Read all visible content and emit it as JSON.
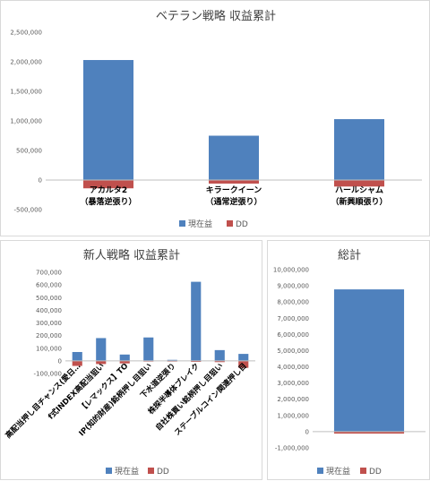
{
  "colors": {
    "profit": "#4f81bd",
    "dd": "#c0504d",
    "grid": "#d9d9d9",
    "axis": "#bfbfbf"
  },
  "chart_data": [
    {
      "type": "bar",
      "title": "ベテラン戦略 収益累計",
      "categories": [
        [
          "アカルタ2",
          "（暴落逆張り）"
        ],
        [
          "キラークイーン",
          "（通常逆張り）"
        ],
        [
          "ハールシャム",
          "（新興順張り）"
        ]
      ],
      "series": [
        {
          "name": "現在益",
          "values": [
            2030000,
            750000,
            1030000
          ]
        },
        {
          "name": "DD",
          "values": [
            -140000,
            -60000,
            -110000
          ]
        }
      ],
      "yticks": [
        "2,500,000",
        "2,000,000",
        "1,500,000",
        "1,000,000",
        "500,000",
        "0",
        "-500,000"
      ],
      "ylim": [
        -500000,
        2500000
      ],
      "grid": false,
      "legend": "bottom"
    },
    {
      "type": "bar",
      "title": "新人戦略 収益累計",
      "categories": [
        "高配当押し目チャンス(愛日…",
        "f式INDEX高配当狙い",
        "【レマックス】TO",
        "IP(知的財産)銘柄押し目狙い",
        "下水道逆張り",
        "株探半導体ブレイク",
        "自社株買い銘柄押し目狙い",
        "ステーブルコイン関連押し目"
      ],
      "series": [
        {
          "name": "現在益",
          "values": [
            70000,
            180000,
            50000,
            185000,
            8000,
            625000,
            85000,
            55000
          ]
        },
        {
          "name": "DD",
          "values": [
            -40000,
            -25000,
            -20000,
            -5000,
            -3000,
            -8000,
            -10000,
            -55000
          ]
        }
      ],
      "yticks": [
        "700,000",
        "600,000",
        "500,000",
        "400,000",
        "300,000",
        "200,000",
        "100,000",
        "0",
        "-100,000"
      ],
      "ylim": [
        -100000,
        700000
      ],
      "grid": false,
      "legend": "bottom"
    },
    {
      "type": "bar",
      "title": "総計",
      "categories": [
        ""
      ],
      "series": [
        {
          "name": "現在益",
          "values": [
            8780000
          ]
        },
        {
          "name": "DD",
          "values": [
            -120000
          ]
        }
      ],
      "yticks": [
        "10,000,000",
        "9,000,000",
        "8,000,000",
        "7,000,000",
        "6,000,000",
        "5,000,000",
        "4,000,000",
        "3,000,000",
        "2,000,000",
        "1,000,000",
        "0",
        "-1,000,000"
      ],
      "ylim": [
        -1000000,
        10000000
      ],
      "grid": false,
      "legend": "bottom"
    }
  ]
}
